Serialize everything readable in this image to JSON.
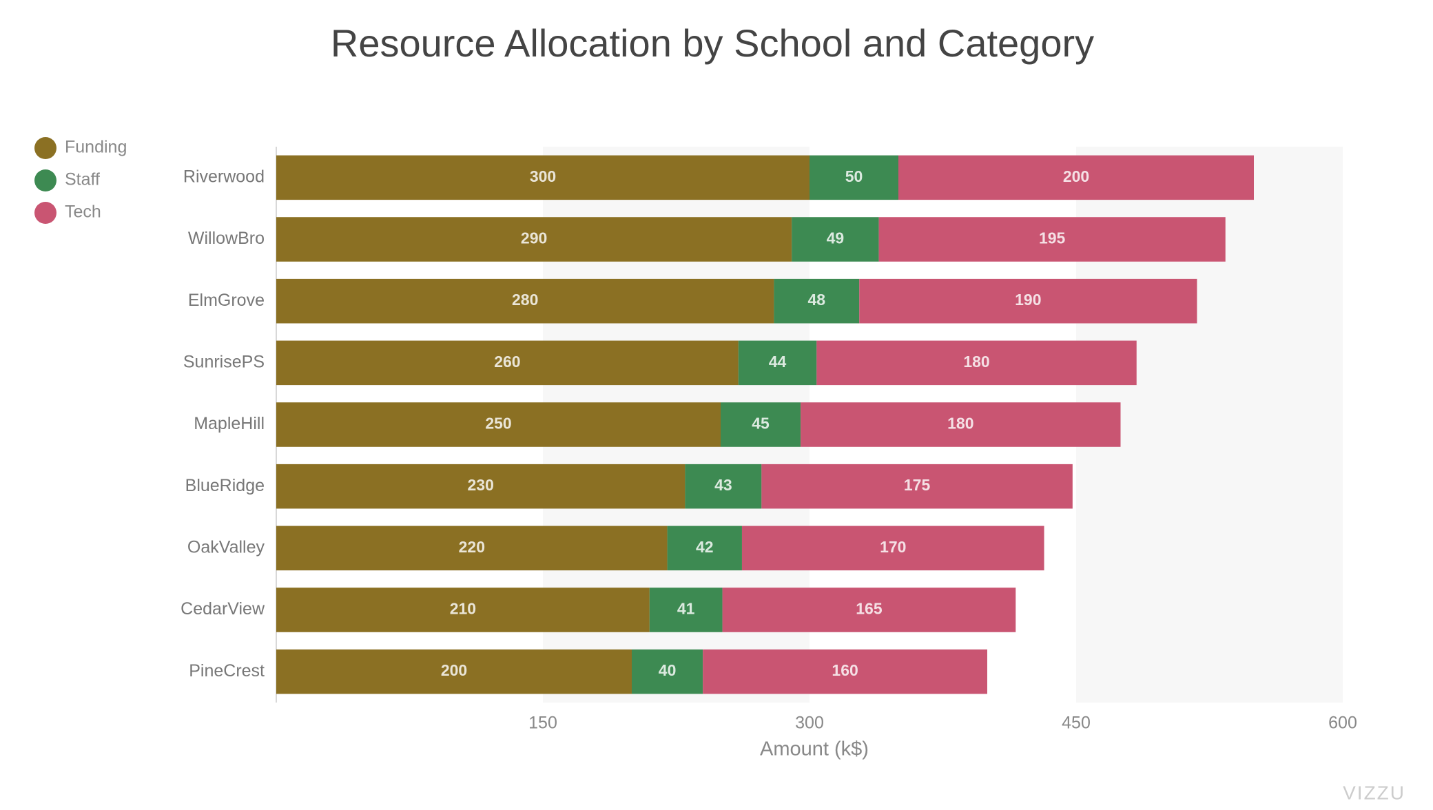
{
  "chart_data": {
    "type": "stacked-bar-horizontal",
    "title": "Resource Allocation by School and Category",
    "x_label": "Amount (k$)",
    "watermark": "VIZZU",
    "categories": [
      "Riverwood",
      "WillowBro",
      "ElmGrove",
      "SunrisePS",
      "MapleHill",
      "BlueRidge",
      "OakValley",
      "CedarView",
      "PineCrest"
    ],
    "series": [
      {
        "name": "Funding",
        "color": "#8b7023",
        "values": [
          300,
          290,
          280,
          260,
          250,
          230,
          220,
          210,
          200
        ]
      },
      {
        "name": "Staff",
        "color": "#3d8a52",
        "values": [
          50,
          49,
          48,
          44,
          45,
          43,
          42,
          41,
          40
        ]
      },
      {
        "name": "Tech",
        "color": "#c95572",
        "values": [
          200,
          195,
          190,
          180,
          180,
          175,
          170,
          165,
          160
        ]
      }
    ],
    "xlim": [
      0,
      600
    ],
    "xticks": [
      150,
      300,
      450,
      600
    ],
    "legend": "left"
  }
}
